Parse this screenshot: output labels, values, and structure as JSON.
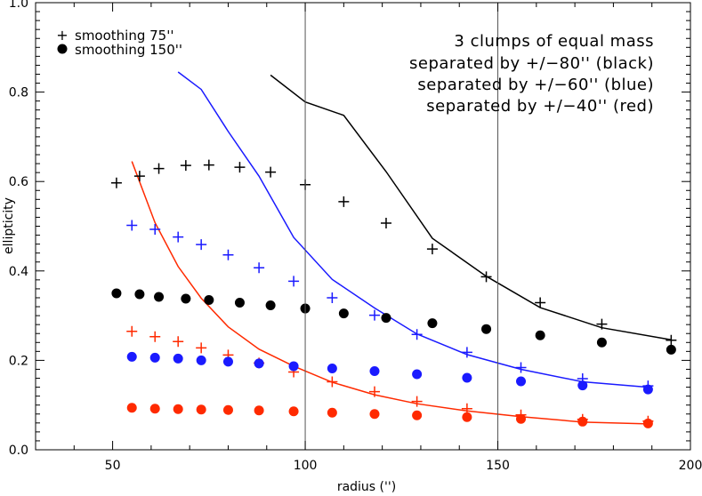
{
  "chart_data": {
    "type": "scatter",
    "xlabel": "radius ('')",
    "ylabel": "ellipticity",
    "xlim": [
      30,
      200
    ],
    "ylim": [
      0.0,
      1.0
    ],
    "x_ticks": [
      50,
      100,
      150,
      200
    ],
    "x_tick_labels": [
      "50",
      "100",
      "150",
      "200"
    ],
    "y_ticks": [
      0.0,
      0.2,
      0.4,
      0.6,
      0.8,
      1.0
    ],
    "y_tick_labels": [
      "0.0",
      "0.2",
      "0.4",
      "0.6",
      "0.8",
      "1.0"
    ],
    "vlines": [
      100,
      150
    ],
    "grid": false,
    "legend": [
      {
        "marker": "+",
        "label": "smoothing 75''"
      },
      {
        "marker": "dot",
        "label": "smoothing 150''"
      }
    ],
    "legend_position": "top-left",
    "annotation": [
      "3 clumps of equal mass",
      "separated by +/−80'' (black)",
      "separated by +/−60'' (blue)",
      "separated by +/−40'' (red)"
    ],
    "colors": {
      "black": "#000000",
      "blue": "#1a1aff",
      "red": "#ff2a00"
    },
    "series": [
      {
        "color": "black",
        "kind": "line",
        "x": [
          91,
          100,
          110,
          121,
          133,
          147,
          161,
          177,
          195
        ],
        "y": [
          0.838,
          0.778,
          0.748,
          0.622,
          0.473,
          0.388,
          0.318,
          0.273,
          0.246
        ]
      },
      {
        "color": "blue",
        "kind": "line",
        "x": [
          67,
          73,
          80,
          88,
          97,
          107,
          118,
          129,
          142,
          156,
          172,
          189
        ],
        "y": [
          0.845,
          0.806,
          0.712,
          0.612,
          0.475,
          0.381,
          0.317,
          0.259,
          0.213,
          0.18,
          0.152,
          0.14
        ]
      },
      {
        "color": "red",
        "kind": "line",
        "x": [
          55,
          61,
          67,
          73,
          80,
          88,
          97,
          107,
          118,
          129,
          142,
          156,
          172,
          189
        ],
        "y": [
          0.645,
          0.508,
          0.41,
          0.339,
          0.275,
          0.225,
          0.187,
          0.151,
          0.123,
          0.103,
          0.087,
          0.074,
          0.062,
          0.058
        ]
      },
      {
        "color": "black",
        "kind": "plus",
        "x": [
          51,
          57,
          62,
          69,
          75,
          83,
          91,
          100,
          110,
          121,
          133,
          147,
          161,
          177,
          195
        ],
        "y": [
          0.597,
          0.612,
          0.629,
          0.636,
          0.637,
          0.632,
          0.621,
          0.593,
          0.555,
          0.507,
          0.449,
          0.387,
          0.329,
          0.281,
          0.245
        ]
      },
      {
        "color": "blue",
        "kind": "plus",
        "x": [
          55,
          61,
          67,
          73,
          80,
          88,
          97,
          107,
          118,
          129,
          142,
          156,
          172,
          189
        ],
        "y": [
          0.502,
          0.493,
          0.476,
          0.459,
          0.436,
          0.407,
          0.377,
          0.34,
          0.301,
          0.258,
          0.218,
          0.184,
          0.159,
          0.143
        ]
      },
      {
        "color": "red",
        "kind": "plus",
        "x": [
          55,
          61,
          67,
          73,
          80,
          88,
          97,
          107,
          118,
          129,
          142,
          156,
          172,
          189
        ],
        "y": [
          0.265,
          0.253,
          0.242,
          0.228,
          0.212,
          0.194,
          0.174,
          0.152,
          0.13,
          0.108,
          0.092,
          0.078,
          0.068,
          0.064
        ]
      },
      {
        "color": "black",
        "kind": "dot",
        "x": [
          51,
          57,
          62,
          69,
          75,
          83,
          91,
          100,
          110,
          121,
          133,
          147,
          161,
          177,
          195
        ],
        "y": [
          0.35,
          0.348,
          0.342,
          0.338,
          0.335,
          0.329,
          0.323,
          0.316,
          0.305,
          0.295,
          0.283,
          0.27,
          0.256,
          0.24,
          0.224
        ]
      },
      {
        "color": "blue",
        "kind": "dot",
        "x": [
          55,
          61,
          67,
          73,
          80,
          88,
          97,
          107,
          118,
          129,
          142,
          156,
          172,
          189
        ],
        "y": [
          0.208,
          0.206,
          0.204,
          0.2,
          0.197,
          0.193,
          0.187,
          0.182,
          0.176,
          0.169,
          0.161,
          0.153,
          0.144,
          0.135
        ]
      },
      {
        "color": "red",
        "kind": "dot",
        "x": [
          55,
          61,
          67,
          73,
          80,
          88,
          97,
          107,
          118,
          129,
          142,
          156,
          172,
          189
        ],
        "y": [
          0.094,
          0.092,
          0.091,
          0.09,
          0.089,
          0.088,
          0.086,
          0.083,
          0.08,
          0.077,
          0.073,
          0.069,
          0.063,
          0.059
        ]
      }
    ]
  }
}
